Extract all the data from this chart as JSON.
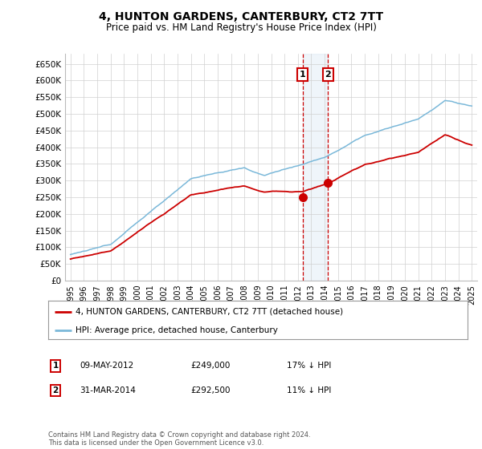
{
  "title": "4, HUNTON GARDENS, CANTERBURY, CT2 7TT",
  "subtitle": "Price paid vs. HM Land Registry's House Price Index (HPI)",
  "background_color": "#ffffff",
  "plot_bg_color": "#ffffff",
  "grid_color": "#d0d0d0",
  "sale1_date": "09-MAY-2012",
  "sale1_price": 249000,
  "sale1_label": "17% ↓ HPI",
  "sale2_date": "31-MAR-2014",
  "sale2_price": 292500,
  "sale2_label": "11% ↓ HPI",
  "sale1_x": 2012.35,
  "sale2_x": 2014.25,
  "hpi_color": "#7ab8d9",
  "price_color": "#cc0000",
  "marker_color": "#cc0000",
  "vline_color": "#cc0000",
  "vshade_color": "#cde0f0",
  "footnote": "Contains HM Land Registry data © Crown copyright and database right 2024.\nThis data is licensed under the Open Government Licence v3.0.",
  "ylim_low": 0,
  "ylim_high": 680000,
  "yticks": [
    0,
    50000,
    100000,
    150000,
    200000,
    250000,
    300000,
    350000,
    400000,
    450000,
    500000,
    550000,
    600000,
    650000
  ],
  "xticks": [
    1995,
    1996,
    1997,
    1998,
    1999,
    2000,
    2001,
    2002,
    2003,
    2004,
    2005,
    2006,
    2007,
    2008,
    2009,
    2010,
    2011,
    2012,
    2013,
    2014,
    2015,
    2016,
    2017,
    2018,
    2019,
    2020,
    2021,
    2022,
    2023,
    2024,
    2025
  ]
}
